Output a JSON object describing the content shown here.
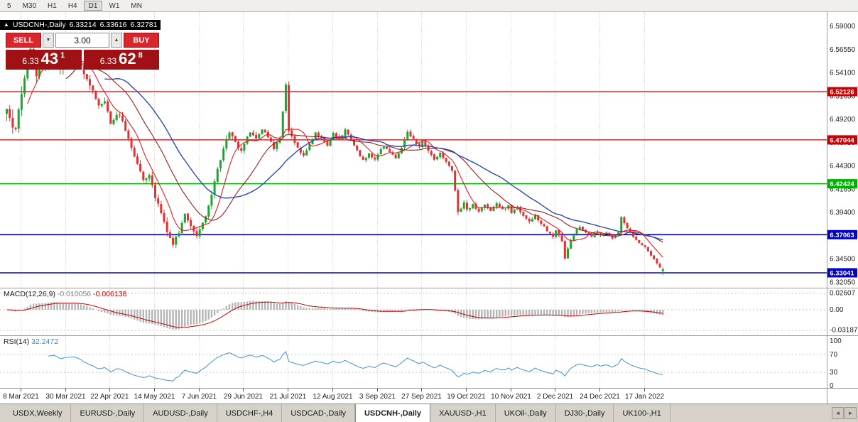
{
  "toolbar": {
    "timeframes": [
      "5",
      "M30",
      "H1",
      "H4",
      "D1",
      "W1",
      "MN"
    ],
    "active": "D1"
  },
  "chart_header": {
    "collapse_icon": "▲",
    "symbol": "USDCNH-,Daily",
    "open": "6.33214",
    "high": "6.33616",
    "low": "6.32781",
    "close": "6.33431"
  },
  "trade_panel": {
    "sell_label": "SELL",
    "buy_label": "BUY",
    "volume": "3.00",
    "down_icon": "▼",
    "up_icon": "▲",
    "sell_price": {
      "small": "6.33",
      "big": "43",
      "sup": "1"
    },
    "buy_price": {
      "small": "6.33",
      "big": "62",
      "sup": "8"
    }
  },
  "colors": {
    "bull": "#1fa32f",
    "bear": "#e03232",
    "ma_fast": "#e01f1f",
    "ma_mid": "#9b1b1b",
    "ma_slow": "#2b49b0",
    "level_red": "#cc0000",
    "level_green": "#00b300",
    "level_blue": "#0000c8",
    "macd_hist": "#b5b5b5",
    "macd_signal": "#cc0000",
    "rsi_line": "#4292d0",
    "grid": "#cccccc"
  },
  "main_axis": {
    "labels": [
      "6.59000",
      "6.56550",
      "6.54100",
      "6.51650",
      "6.49200",
      "6.46750",
      "6.44300",
      "6.41850",
      "6.39400",
      "6.36950",
      "6.34500",
      "6.32050"
    ]
  },
  "time_axis": {
    "labels": [
      "8 Mar 2021",
      "30 Mar 2021",
      "22 Apr 2021",
      "14 May 2021",
      "7 Jun 2021",
      "29 Jun 2021",
      "21 Jul 2021",
      "12 Aug 2021",
      "3 Sep 2021",
      "27 Sep 2021",
      "19 Oct 2021",
      "10 Nov 2021",
      "2 Dec 2021",
      "24 Dec 2021",
      "17 Jan 2022"
    ]
  },
  "indicators": {
    "macd": {
      "label": "MACD(12,26,9)",
      "value_main": "-0.010056",
      "value_signal": "-0.006138",
      "axis": [
        "0.02607",
        "0.00",
        "-0.03187"
      ],
      "axis_values": [
        0.02607,
        0,
        -0.03187
      ],
      "fast": 12,
      "slow": 26,
      "signal": 9
    },
    "rsi": {
      "label": "RSI(14)",
      "value": "32.2472",
      "axis": [
        "100",
        "70",
        "30",
        "0"
      ],
      "axis_values": [
        100,
        70,
        30,
        0
      ],
      "period": 14
    }
  },
  "chart_data": {
    "type": "candlestick-ohlc",
    "symbol": "USDCNH-",
    "timeframe": "Daily",
    "title": "USDCNH-,Daily",
    "num_candles": 222,
    "x_first_tick": 5,
    "x_tick_every": 15,
    "y_axis_range": [
      6.3147,
      6.6051
    ],
    "last_candle": {
      "open": 6.33214,
      "high": 6.33616,
      "low": 6.32781,
      "close": 6.33431
    },
    "levels": [
      {
        "price": 6.52126,
        "label": "6.52126",
        "color_key": "level_red",
        "width": 1.3
      },
      {
        "price": 6.47044,
        "label": "6.47044",
        "color_key": "level_red",
        "width": 1.3
      },
      {
        "price": 6.42424,
        "label": "6.42424",
        "color_key": "level_green",
        "width": 1.6
      },
      {
        "price": 6.37063,
        "label": "6.37063",
        "color_key": "level_blue",
        "width": 1.6
      },
      {
        "price": 6.33041,
        "label": "6.33041",
        "color_key": "level_blue",
        "width": 1.6
      }
    ],
    "price_anchors": [
      [
        0,
        6.5,
        0.014
      ],
      [
        3,
        6.478,
        0.016
      ],
      [
        5,
        6.522,
        0.014
      ],
      [
        8,
        6.566,
        0.016
      ],
      [
        10,
        6.54,
        0.014
      ],
      [
        13,
        6.548,
        0.011
      ],
      [
        16,
        6.562,
        0.01
      ],
      [
        18,
        6.546,
        0.01
      ],
      [
        20,
        6.554,
        0.011
      ],
      [
        23,
        6.56,
        0.01
      ],
      [
        25,
        6.548,
        0.009
      ],
      [
        28,
        6.529,
        0.008
      ],
      [
        31,
        6.506,
        0.008
      ],
      [
        33,
        6.513,
        0.008
      ],
      [
        35,
        6.489,
        0.008
      ],
      [
        38,
        6.498,
        0.007
      ],
      [
        41,
        6.471,
        0.007
      ],
      [
        44,
        6.446,
        0.008
      ],
      [
        46,
        6.429,
        0.008
      ],
      [
        48,
        6.434,
        0.007
      ],
      [
        50,
        6.411,
        0.008
      ],
      [
        52,
        6.393,
        0.008
      ],
      [
        54,
        6.374,
        0.008
      ],
      [
        56,
        6.361,
        0.007
      ],
      [
        58,
        6.373,
        0.006
      ],
      [
        60,
        6.392,
        0.006
      ],
      [
        62,
        6.381,
        0.006
      ],
      [
        64,
        6.369,
        0.006
      ],
      [
        65,
        6.377,
        0.006
      ],
      [
        67,
        6.391,
        0.006
      ],
      [
        69,
        6.413,
        0.007
      ],
      [
        71,
        6.439,
        0.008
      ],
      [
        73,
        6.463,
        0.008
      ],
      [
        75,
        6.479,
        0.008
      ],
      [
        77,
        6.469,
        0.006
      ],
      [
        79,
        6.458,
        0.006
      ],
      [
        80,
        6.466,
        0.006
      ],
      [
        82,
        6.479,
        0.006
      ],
      [
        84,
        6.471,
        0.006
      ],
      [
        86,
        6.481,
        0.005
      ],
      [
        88,
        6.474,
        0.005
      ],
      [
        90,
        6.461,
        0.005
      ],
      [
        92,
        6.473,
        0.005
      ],
      [
        94,
        6.53,
        0.006
      ],
      [
        95,
        6.481,
        0.007
      ],
      [
        97,
        6.468,
        0.005
      ],
      [
        100,
        6.453,
        0.005
      ],
      [
        102,
        6.466,
        0.005
      ],
      [
        104,
        6.479,
        0.005
      ],
      [
        106,
        6.471,
        0.004
      ],
      [
        108,
        6.464,
        0.004
      ],
      [
        110,
        6.478,
        0.004
      ],
      [
        112,
        6.471,
        0.004
      ],
      [
        114,
        6.481,
        0.004
      ],
      [
        116,
        6.471,
        0.004
      ],
      [
        118,
        6.459,
        0.004
      ],
      [
        120,
        6.449,
        0.004
      ],
      [
        122,
        6.456,
        0.004
      ],
      [
        124,
        6.449,
        0.004
      ],
      [
        125,
        6.456,
        0.004
      ],
      [
        127,
        6.464,
        0.004
      ],
      [
        129,
        6.458,
        0.004
      ],
      [
        131,
        6.451,
        0.004
      ],
      [
        133,
        6.463,
        0.005
      ],
      [
        135,
        6.479,
        0.006
      ],
      [
        137,
        6.471,
        0.005
      ],
      [
        139,
        6.463,
        0.004
      ],
      [
        140,
        6.469,
        0.004
      ],
      [
        142,
        6.459,
        0.004
      ],
      [
        144,
        6.449,
        0.004
      ],
      [
        146,
        6.456,
        0.004
      ],
      [
        148,
        6.448,
        0.004
      ],
      [
        150,
        6.439,
        0.004
      ],
      [
        152,
        6.394,
        0.006
      ],
      [
        154,
        6.404,
        0.005
      ],
      [
        155,
        6.396,
        0.005
      ],
      [
        157,
        6.403,
        0.004
      ],
      [
        159,
        6.394,
        0.004
      ],
      [
        161,
        6.401,
        0.005
      ],
      [
        163,
        6.396,
        0.004
      ],
      [
        165,
        6.403,
        0.004
      ],
      [
        167,
        6.397,
        0.004
      ],
      [
        169,
        6.401,
        0.004
      ],
      [
        170,
        6.394,
        0.004
      ],
      [
        172,
        6.399,
        0.004
      ],
      [
        174,
        6.391,
        0.004
      ],
      [
        176,
        6.384,
        0.004
      ],
      [
        178,
        6.391,
        0.004
      ],
      [
        180,
        6.382,
        0.004
      ],
      [
        182,
        6.375,
        0.004
      ],
      [
        184,
        6.369,
        0.004
      ],
      [
        185,
        6.376,
        0.004
      ],
      [
        187,
        6.363,
        0.005
      ],
      [
        188,
        6.346,
        0.006
      ],
      [
        189,
        6.357,
        0.005
      ],
      [
        191,
        6.371,
        0.004
      ],
      [
        193,
        6.379,
        0.004
      ],
      [
        195,
        6.373,
        0.004
      ],
      [
        197,
        6.369,
        0.003
      ],
      [
        199,
        6.374,
        0.003
      ],
      [
        200,
        6.37,
        0.003
      ],
      [
        202,
        6.373,
        0.003
      ],
      [
        204,
        6.367,
        0.003
      ],
      [
        206,
        6.373,
        0.003
      ],
      [
        207,
        6.389,
        0.004
      ],
      [
        209,
        6.378,
        0.004
      ],
      [
        211,
        6.369,
        0.003
      ],
      [
        213,
        6.361,
        0.003
      ],
      [
        215,
        6.357,
        0.003
      ],
      [
        217,
        6.349,
        0.003
      ],
      [
        219,
        6.341,
        0.003
      ],
      [
        220,
        6.3365,
        0.003
      ],
      [
        221,
        6.33431,
        0.002
      ]
    ]
  },
  "tabs": {
    "items": [
      "USDX,Weekly",
      "EURUSD-,Daily",
      "AUDUSD-,Daily",
      "USDCHF-,H4",
      "USDCAD-,Daily",
      "USDCNH-,Daily",
      "XAUUSD-,H1",
      "UKOil-,Daily",
      "DJ30-,Daily",
      "UK100-,H1"
    ],
    "active_index": 5,
    "scroll_left_icon": "◄",
    "scroll_right_icon": "►"
  }
}
